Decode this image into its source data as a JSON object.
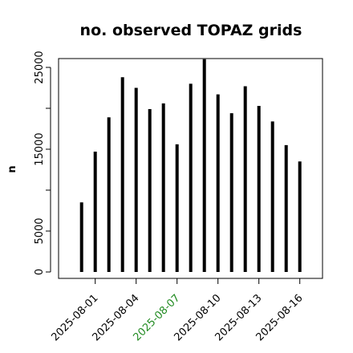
{
  "chart_data": {
    "type": "bar",
    "title": "no. observed TOPAZ grids",
    "xlabel": "",
    "ylabel": "n",
    "ylim": [
      0,
      26000
    ],
    "y_ticks": [
      0,
      5000,
      10000,
      15000,
      20000,
      25000
    ],
    "y_tick_labels": [
      "0",
      "5000",
      "",
      "15000",
      "",
      "25000"
    ],
    "x": [
      "2025-07-31",
      "2025-08-01",
      "2025-08-02",
      "2025-08-03",
      "2025-08-04",
      "2025-08-05",
      "2025-08-06",
      "2025-08-07",
      "2025-08-08",
      "2025-08-09",
      "2025-08-10",
      "2025-08-11",
      "2025-08-12",
      "2025-08-13",
      "2025-08-14",
      "2025-08-15",
      "2025-08-16"
    ],
    "values": [
      8500,
      14700,
      18900,
      23800,
      22500,
      19900,
      20600,
      15600,
      23000,
      26000,
      21700,
      19400,
      22700,
      20300,
      18400,
      15500,
      13500
    ],
    "x_tick_labels": [
      "2025-08-01",
      "2025-08-04",
      "2025-08-07",
      "2025-08-10",
      "2025-08-13",
      "2025-08-16"
    ],
    "x_tick_colors": [
      "#000000",
      "#000000",
      "#228b22",
      "#000000",
      "#000000",
      "#000000"
    ],
    "bar_color": "#000000",
    "grid": false
  }
}
